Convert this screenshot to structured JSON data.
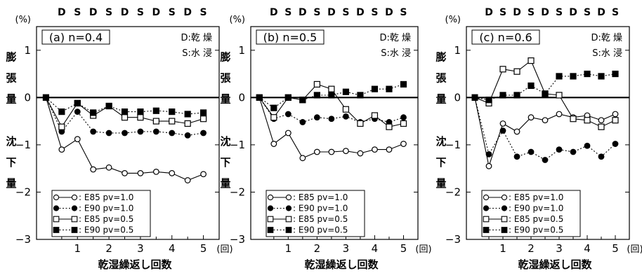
{
  "chart_data": [
    {
      "type": "line",
      "title": "(a) n=0.4",
      "legend_note": [
        "D:乾 燥",
        "S:水 浸"
      ],
      "cycle_markers": [
        "D",
        "S",
        "D",
        "S",
        "D",
        "S",
        "D",
        "S",
        "D",
        "S"
      ],
      "y_unit": "(%)",
      "ylabel_top": "膨 張 量",
      "ylabel_bottom": "沈 下 量",
      "xlabel": "乾湿繰返し回数",
      "x_unit": "(回)",
      "x_ticks": [
        "1",
        "2",
        "3",
        "4",
        "5"
      ],
      "y_ticks": [
        "1",
        "0",
        "−1",
        "−2",
        "−3"
      ],
      "ylim": [
        -3,
        1.5
      ],
      "xlim": [
        -0.3,
        5.5
      ],
      "legend_placement": "bottom-left",
      "x": [
        0,
        0.5,
        1,
        1.5,
        2,
        2.5,
        3,
        3.5,
        4,
        4.5,
        5
      ],
      "series": [
        {
          "name": ": E85 pv=1.0",
          "marker": "open-circle",
          "line": "solid",
          "values": [
            0,
            -1.1,
            -0.88,
            -1.52,
            -1.48,
            -1.6,
            -1.6,
            -1.57,
            -1.6,
            -1.75,
            -1.62
          ]
        },
        {
          "name": ": E90 pv=1.0",
          "marker": "filled-circle",
          "line": "dotted",
          "values": [
            0,
            -0.72,
            -0.3,
            -0.72,
            -0.75,
            -0.75,
            -0.72,
            -0.72,
            -0.75,
            -0.8,
            -0.75
          ]
        },
        {
          "name": ": E85 pv=0.5",
          "marker": "open-square",
          "line": "solid",
          "values": [
            0,
            -0.62,
            -0.12,
            -0.38,
            -0.18,
            -0.42,
            -0.42,
            -0.5,
            -0.5,
            -0.55,
            -0.45
          ]
        },
        {
          "name": ": E90 pv=0.5",
          "marker": "filled-square",
          "line": "dotted",
          "values": [
            0,
            -0.3,
            -0.12,
            -0.32,
            -0.18,
            -0.3,
            -0.3,
            -0.28,
            -0.3,
            -0.35,
            -0.32
          ]
        }
      ]
    },
    {
      "type": "line",
      "title": "(b) n=0.5",
      "legend_note": [
        "D:乾 燥",
        "S:水 浸"
      ],
      "cycle_markers": [
        "D",
        "S",
        "D",
        "S",
        "D",
        "S",
        "D",
        "S",
        "D",
        "S"
      ],
      "y_unit": "(%)",
      "ylabel_top": "膨 張 量",
      "ylabel_bottom": "沈 下 量",
      "xlabel": "乾湿繰返し回数",
      "x_unit": "(回)",
      "x_ticks": [
        "1",
        "2",
        "3",
        "4",
        "5"
      ],
      "y_ticks": [
        "1",
        "0",
        "−1",
        "−2",
        "−3"
      ],
      "ylim": [
        -3,
        1.5
      ],
      "xlim": [
        -0.3,
        5.5
      ],
      "legend_placement": "bottom-left",
      "x": [
        0,
        0.5,
        1,
        1.5,
        2,
        2.5,
        3,
        3.5,
        4,
        4.5,
        5
      ],
      "series": [
        {
          "name": ": E85 pv=1.0",
          "marker": "open-circle",
          "line": "solid",
          "values": [
            0,
            -0.98,
            -0.75,
            -1.28,
            -1.15,
            -1.15,
            -1.13,
            -1.18,
            -1.1,
            -1.1,
            -0.98
          ]
        },
        {
          "name": ": E90 pv=1.0",
          "marker": "filled-circle",
          "line": "dotted",
          "values": [
            0,
            -0.45,
            -0.35,
            -0.52,
            -0.42,
            -0.45,
            -0.4,
            -0.52,
            -0.45,
            -0.52,
            -0.42
          ]
        },
        {
          "name": ": E85 pv=0.5",
          "marker": "open-square",
          "line": "solid",
          "values": [
            0,
            -0.42,
            0.0,
            -0.05,
            0.28,
            0.18,
            -0.25,
            -0.55,
            -0.38,
            -0.62,
            -0.55
          ]
        },
        {
          "name": ": E90 pv=0.5",
          "marker": "filled-square",
          "line": "dotted",
          "values": [
            0,
            -0.22,
            0.0,
            -0.05,
            0.05,
            0.05,
            0.12,
            0.05,
            0.18,
            0.18,
            0.28
          ]
        }
      ]
    },
    {
      "type": "line",
      "title": "(c) n=0.6",
      "legend_note": [
        "D:乾 燥",
        "S:水 浸"
      ],
      "cycle_markers": [
        "D",
        "S",
        "D",
        "S",
        "D",
        "S",
        "D",
        "S",
        "D",
        "S"
      ],
      "y_unit": "(%)",
      "ylabel_top": "膨 張 量",
      "ylabel_bottom": "沈 下 量",
      "xlabel": "乾湿繰返し回数",
      "x_unit": "(回)",
      "x_ticks": [
        "1",
        "2",
        "3",
        "4",
        "5"
      ],
      "y_ticks": [
        "1",
        "0",
        "−1",
        "−2",
        "−3"
      ],
      "ylim": [
        -3,
        1.5
      ],
      "xlim": [
        -0.3,
        5.5
      ],
      "legend_placement": "bottom-left",
      "x": [
        0,
        0.5,
        1,
        1.5,
        2,
        2.5,
        3,
        3.5,
        4,
        4.5,
        5
      ],
      "series": [
        {
          "name": ": E85 pv=1.0",
          "marker": "open-circle",
          "line": "solid",
          "values": [
            0,
            -1.45,
            -0.55,
            -0.72,
            -0.42,
            -0.48,
            -0.35,
            -0.42,
            -0.38,
            -0.48,
            -0.35
          ]
        },
        {
          "name": ": E90 pv=1.0",
          "marker": "filled-circle",
          "line": "dotted",
          "values": [
            0,
            -1.2,
            -0.7,
            -1.25,
            -1.15,
            -1.32,
            -1.1,
            -1.15,
            -1.02,
            -1.25,
            -0.98
          ]
        },
        {
          "name": ": E85 pv=0.5",
          "marker": "open-square",
          "line": "solid",
          "values": [
            0,
            -0.12,
            0.6,
            0.55,
            0.78,
            0.08,
            0.05,
            -0.45,
            -0.48,
            -0.62,
            -0.48
          ]
        },
        {
          "name": ": E90 pv=0.5",
          "marker": "filled-square",
          "line": "dotted",
          "values": [
            0,
            -0.05,
            0.05,
            0.05,
            0.25,
            0.08,
            0.45,
            0.45,
            0.5,
            0.45,
            0.5
          ]
        }
      ]
    }
  ]
}
